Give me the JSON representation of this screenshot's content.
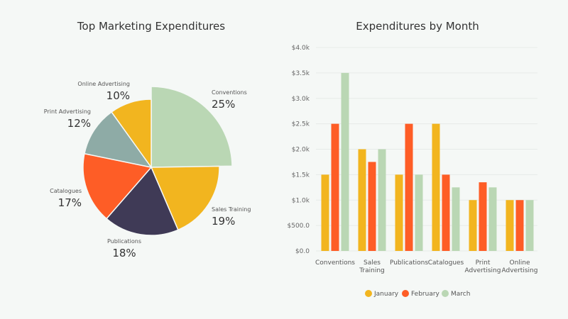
{
  "colors": {
    "conventions": "#bad7b4",
    "yellow": "#f2b51f",
    "orange": "#fe5d26",
    "dark": "#3f3a56",
    "teal": "#8eaba6",
    "background": "#f5f8f6"
  },
  "chart_data": [
    {
      "type": "pie",
      "title": "Top Marketing Expenditures",
      "slices": [
        {
          "label": "Conventions",
          "value": 25,
          "text": "25%",
          "color": "#bad7b4"
        },
        {
          "label": "Sales Training",
          "value": 19,
          "text": "19%",
          "color": "#f2b51f"
        },
        {
          "label": "Publications",
          "value": 18,
          "text": "18%",
          "color": "#3f3a56"
        },
        {
          "label": "Catalogues",
          "value": 17,
          "text": "17%",
          "color": "#fe5d26"
        },
        {
          "label": "Print Advertising",
          "value": 12,
          "text": "12%",
          "color": "#8eaba6"
        },
        {
          "label": "Online Advertising",
          "value": 10,
          "text": "10%",
          "color": "#f2b51f"
        }
      ]
    },
    {
      "type": "bar",
      "title": "Expenditures by Month",
      "categories": [
        [
          "Conventions"
        ],
        [
          "Sales",
          "Training"
        ],
        [
          "Publications"
        ],
        [
          "Catalogues"
        ],
        [
          "Print",
          "Advertising"
        ],
        [
          "Online",
          "Advertising"
        ]
      ],
      "series": [
        {
          "name": "January",
          "color": "#f2b51f",
          "values": [
            1500,
            2000,
            1500,
            2500,
            1000,
            1000
          ]
        },
        {
          "name": "February",
          "color": "#fe5d26",
          "values": [
            2500,
            1750,
            2500,
            1500,
            1350,
            1000
          ]
        },
        {
          "name": "March",
          "color": "#bad7b4",
          "values": [
            3500,
            2000,
            1500,
            1250,
            1250,
            1000
          ]
        }
      ],
      "ylim": [
        0,
        4000
      ],
      "yticks": [
        "$0.0",
        "$500.0",
        "$1.0k",
        "$1.5k",
        "$2.0k",
        "$2.5k",
        "$3.0k",
        "$3.5k",
        "$4.0k"
      ],
      "grid": true,
      "legend": "bottom"
    }
  ]
}
